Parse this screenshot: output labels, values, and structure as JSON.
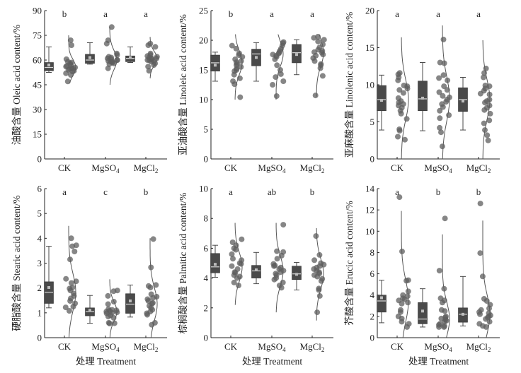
{
  "colors": {
    "box": "#4a4a4a",
    "median": "#d9d9d9",
    "mean": "#bdbdbd",
    "whisker": "#4a4a4a",
    "dot": "#5e5e5e",
    "density": "#555555",
    "axis": "#222222"
  },
  "chart_data": [
    {
      "type": "box",
      "panel": "top-left",
      "ylabel": "油酸含量 Oleic acid content/%",
      "xlabel": "",
      "categories": [
        "CK",
        "MgSO4",
        "MgCl2"
      ],
      "category_labels": [
        {
          "base": "CK",
          "sub": ""
        },
        {
          "base": "MgSO",
          "sub": "4"
        },
        {
          "base": "MgCl",
          "sub": "2"
        }
      ],
      "ylim": [
        0,
        90
      ],
      "yticks": [
        0,
        15,
        30,
        45,
        60,
        75,
        90
      ],
      "significance": [
        "b",
        "a",
        "a"
      ],
      "boxes": [
        {
          "min": 52.5,
          "q1": 53.5,
          "median": 55.5,
          "q3": 58.5,
          "max": 68,
          "mean": 57
        },
        {
          "min": 57.5,
          "q1": 58,
          "median": 60,
          "q3": 63.5,
          "max": 70.5,
          "mean": 61.5
        },
        {
          "min": 58.5,
          "q1": 59,
          "median": 61,
          "q3": 62.5,
          "max": 68,
          "mean": 61.5
        }
      ],
      "points": [
        [
          72,
          69,
          60.5,
          59,
          58,
          57,
          56,
          55.5,
          55,
          54.5,
          54,
          53.5,
          53,
          52,
          51,
          47,
          55,
          56.5,
          58.5
        ],
        [
          80,
          72,
          70,
          64,
          63,
          61,
          60.5,
          60,
          59.5,
          59,
          58.5,
          58,
          57.5,
          55,
          60,
          61.5,
          62,
          59
        ],
        [
          70,
          69,
          68,
          64,
          63,
          62.5,
          62,
          61.5,
          61,
          60.5,
          60,
          59.5,
          59,
          58,
          57,
          56,
          53.5,
          61,
          60
        ]
      ],
      "density_range": [
        [
          46,
          75
        ],
        [
          45,
          80
        ],
        [
          49,
          74
        ]
      ]
    },
    {
      "type": "box",
      "panel": "top-middle",
      "ylabel": "亚油酸含量 Linoleic acid content/%",
      "xlabel": "",
      "categories": [
        "CK",
        "MgSO4",
        "MgCl2"
      ],
      "category_labels": [
        {
          "base": "CK",
          "sub": ""
        },
        {
          "base": "MgSO",
          "sub": "4"
        },
        {
          "base": "MgCl",
          "sub": "2"
        }
      ],
      "ylim": [
        0,
        25
      ],
      "yticks": [
        0,
        5,
        10,
        15,
        20,
        25
      ],
      "significance": [
        "b",
        "a",
        "a"
      ],
      "boxes": [
        {
          "min": 13.1,
          "q1": 14.8,
          "median": 16.2,
          "q3": 17.5,
          "max": 18,
          "mean": 15.8
        },
        {
          "min": 13.1,
          "q1": 15.7,
          "median": 17.7,
          "q3": 18.5,
          "max": 19.6,
          "mean": 17.1
        },
        {
          "min": 14.2,
          "q1": 16.2,
          "median": 17.9,
          "q3": 19.3,
          "max": 20.1,
          "mean": 17.6
        }
      ],
      "points": [
        [
          19.1,
          18.6,
          17.8,
          17.5,
          17.2,
          16.8,
          16.3,
          16,
          15.8,
          15.5,
          15.2,
          15,
          14.8,
          14.2,
          13.6,
          13.1,
          12.6,
          10.4,
          16.5
        ],
        [
          19.7,
          19.5,
          19.1,
          18.6,
          18.2,
          17.8,
          17.6,
          17.4,
          17.2,
          16.8,
          15.8,
          15,
          14.3,
          13.8,
          13.1,
          12.5,
          10.6,
          17.9
        ],
        [
          20.6,
          20.4,
          20.1,
          19.8,
          19.3,
          18.8,
          18.4,
          18,
          17.9,
          17.6,
          17.4,
          17,
          16.5,
          16,
          15.8,
          15.3,
          14,
          10.7,
          18.2
        ]
      ],
      "density_range": [
        [
          10,
          21
        ],
        [
          10,
          21
        ],
        [
          10.5,
          21
        ]
      ]
    },
    {
      "type": "box",
      "panel": "top-right",
      "ylabel": "亚麻酸含量 Linolenic acid content/%",
      "xlabel": "",
      "categories": [
        "CK",
        "MgSO4",
        "MgCl2"
      ],
      "category_labels": [
        {
          "base": "CK",
          "sub": ""
        },
        {
          "base": "MgSO",
          "sub": "4"
        },
        {
          "base": "MgCl",
          "sub": "2"
        }
      ],
      "ylim": [
        0,
        20
      ],
      "yticks": [
        0,
        5,
        10,
        15,
        20
      ],
      "significance": [
        "a",
        "a",
        "a"
      ],
      "boxes": [
        {
          "min": 3.9,
          "q1": 6.5,
          "median": 8,
          "q3": 9.9,
          "max": 11.3,
          "mean": 7.9
        },
        {
          "min": 3.8,
          "q1": 6.5,
          "median": 8.1,
          "q3": 10.5,
          "max": 13,
          "mean": 8.2
        },
        {
          "min": 3.9,
          "q1": 6.4,
          "median": 8,
          "q3": 9.6,
          "max": 11,
          "mean": 7.8
        }
      ],
      "points": [
        [
          11.6,
          11.4,
          11,
          10.6,
          9.9,
          9.8,
          9.5,
          9.3,
          8.9,
          8.2,
          7.8,
          7.4,
          7.2,
          6.9,
          6.5,
          6.1,
          5.4,
          4,
          3.8,
          3,
          2.6,
          7.6
        ],
        [
          16.1,
          13,
          12.9,
          11.3,
          10.9,
          10.6,
          9.8,
          9.3,
          8.5,
          8.3,
          8,
          7.7,
          7.4,
          7,
          6.5,
          5.9,
          5.5,
          4.2,
          3.6,
          1.7,
          9
        ],
        [
          12.2,
          11.6,
          11,
          9.9,
          9.8,
          9.5,
          9.2,
          8.8,
          8,
          7.8,
          7.6,
          7.2,
          6.9,
          6.6,
          6.1,
          5.2,
          4.8,
          3.9,
          3.2,
          2.5,
          8.7
        ]
      ],
      "density_range": [
        [
          0,
          16.4
        ],
        [
          0,
          18
        ],
        [
          0,
          16
        ]
      ]
    },
    {
      "type": "box",
      "panel": "bottom-left",
      "ylabel": "硬脂酸含量 Stearic acid content/%",
      "xlabel": "处理 Treatment",
      "categories": [
        "CK",
        "MgSO4",
        "MgCl2"
      ],
      "category_labels": [
        {
          "base": "CK",
          "sub": ""
        },
        {
          "base": "MgSO",
          "sub": "4"
        },
        {
          "base": "MgCl",
          "sub": "2"
        }
      ],
      "ylim": [
        0,
        6
      ],
      "yticks": [
        0,
        1,
        2,
        3,
        4,
        5,
        6
      ],
      "significance": [
        "a",
        "c",
        "b"
      ],
      "boxes": [
        {
          "min": 1.2,
          "q1": 1.38,
          "median": 1.83,
          "q3": 2.25,
          "max": 3.68,
          "mean": 2.02
        },
        {
          "min": 0.58,
          "q1": 0.88,
          "median": 1.05,
          "q3": 1.2,
          "max": 1.7,
          "mean": 1.1
        },
        {
          "min": 0.83,
          "q1": 0.98,
          "median": 1.35,
          "q3": 1.77,
          "max": 2.12,
          "mean": 1.48
        },
        {
          "note": ""
        }
      ],
      "points": [
        [
          4,
          3.72,
          3.68,
          3.47,
          3.15,
          2.37,
          2.27,
          2.2,
          2.02,
          1.98,
          1.78,
          1.68,
          1.58,
          1.48,
          1.38,
          1.25,
          1.22,
          1.08,
          1.9
        ],
        [
          1.9,
          1.87,
          1.68,
          1.45,
          1.35,
          1.15,
          1.12,
          1.08,
          1.05,
          1.02,
          1,
          0.98,
          0.9,
          0.85,
          0.8,
          0.6,
          0.58,
          0.57,
          1.1
        ],
        [
          3.97,
          2.83,
          2.12,
          2.08,
          2.02,
          1.75,
          1.65,
          1.6,
          1.55,
          1.48,
          1.37,
          1.28,
          1.2,
          1.12,
          1.05,
          0.98,
          0.92,
          0.6,
          0.52,
          1.4
        ]
      ],
      "density_range": [
        [
          0,
          4.5
        ],
        [
          0,
          2.35
        ],
        [
          0,
          4
        ]
      ]
    },
    {
      "type": "box",
      "panel": "bottom-middle",
      "ylabel": "棕榈酸含量 Palmitic acid content/%",
      "xlabel": "处理 Treatment",
      "categories": [
        "CK",
        "MgSO4",
        "MgCl2"
      ],
      "category_labels": [
        {
          "base": "CK",
          "sub": ""
        },
        {
          "base": "MgSO",
          "sub": "4"
        },
        {
          "base": "MgCl",
          "sub": "2"
        }
      ],
      "ylim": [
        0,
        10
      ],
      "yticks": [
        0,
        2,
        4,
        6,
        8,
        10
      ],
      "significance": [
        "a",
        "ab",
        "b"
      ],
      "boxes": [
        {
          "min": 4.05,
          "q1": 4.35,
          "median": 4.75,
          "q3": 5.65,
          "max": 6.2,
          "mean": 4.92
        },
        {
          "min": 3.62,
          "q1": 4,
          "median": 4.48,
          "q3": 4.85,
          "max": 5.72,
          "mean": 4.55
        },
        {
          "min": 3.2,
          "q1": 3.9,
          "median": 4.28,
          "q3": 4.8,
          "max": 5.05,
          "mean": 4.25
        }
      ],
      "points": [
        [
          6.6,
          6.4,
          6.2,
          6,
          5.9,
          5.6,
          5.3,
          5,
          4.95,
          4.8,
          4.6,
          4.4,
          4.35,
          4.2,
          4.1,
          4,
          3.7,
          3.5,
          5.2
        ],
        [
          7.58,
          5.8,
          5.75,
          5.5,
          5.3,
          4.95,
          4.85,
          4.8,
          4.7,
          4.6,
          4.5,
          4.3,
          4.2,
          4,
          3.9,
          3.7,
          3.5,
          3.35,
          4.4
        ],
        [
          6.82,
          5.55,
          5.2,
          5.0,
          4.9,
          4.8,
          4.7,
          4.5,
          4.4,
          4.3,
          4.2,
          4.1,
          3.95,
          3.8,
          3.3,
          3.2,
          2.8,
          1.7,
          4.6
        ]
      ],
      "density_range": [
        [
          2.2,
          7.7
        ],
        [
          1.7,
          7.7
        ],
        [
          1.15,
          7.35
        ]
      ]
    },
    {
      "type": "box",
      "panel": "bottom-right",
      "ylabel": "芥酸含量 Erucic acid content/%",
      "xlabel": "处理 Treatment",
      "categories": [
        "CK",
        "MgSO4",
        "MgCl2"
      ],
      "category_labels": [
        {
          "base": "CK",
          "sub": ""
        },
        {
          "base": "MgSO",
          "sub": "4"
        },
        {
          "base": "MgCl",
          "sub": "2"
        }
      ],
      "ylim": [
        0,
        14
      ],
      "yticks": [
        0,
        2,
        4,
        6,
        8,
        10,
        12,
        14
      ],
      "significance": [
        "a",
        "b",
        "b"
      ],
      "boxes": [
        {
          "min": 1.4,
          "q1": 2.4,
          "median": 3.45,
          "q3": 4,
          "max": 5.4,
          "mean": 3.75
        },
        {
          "min": 1,
          "q1": 1.3,
          "median": 1.75,
          "q3": 3.3,
          "max": 4.6,
          "mean": 2.5
        },
        {
          "min": 1.1,
          "q1": 1.45,
          "median": 2.2,
          "q3": 2.8,
          "max": 5.75,
          "mean": 2.2
        }
      ],
      "points": [
        [
          13.2,
          8.1,
          5.4,
          5.35,
          4.35,
          4,
          3.9,
          3.7,
          3.5,
          3.3,
          3.2,
          2.6,
          2.4,
          2,
          1.8,
          1.5,
          1.3,
          1,
          3.6
        ],
        [
          11.2,
          6.3,
          4.6,
          3.7,
          3.5,
          3.3,
          2.6,
          2.5,
          1.9,
          1.8,
          1.7,
          1.6,
          1.5,
          1.3,
          1.2,
          1.1,
          1,
          1,
          2
        ],
        [
          12.6,
          7.95,
          5.75,
          3.65,
          3.45,
          3.1,
          2.75,
          2.6,
          2.4,
          2.3,
          2.1,
          2,
          1.9,
          1.75,
          1.5,
          1.3,
          1.1,
          1,
          2.2
        ]
      ],
      "density_range": [
        [
          0,
          11.9
        ],
        [
          0,
          9.7
        ],
        [
          0,
          11
        ]
      ]
    }
  ]
}
